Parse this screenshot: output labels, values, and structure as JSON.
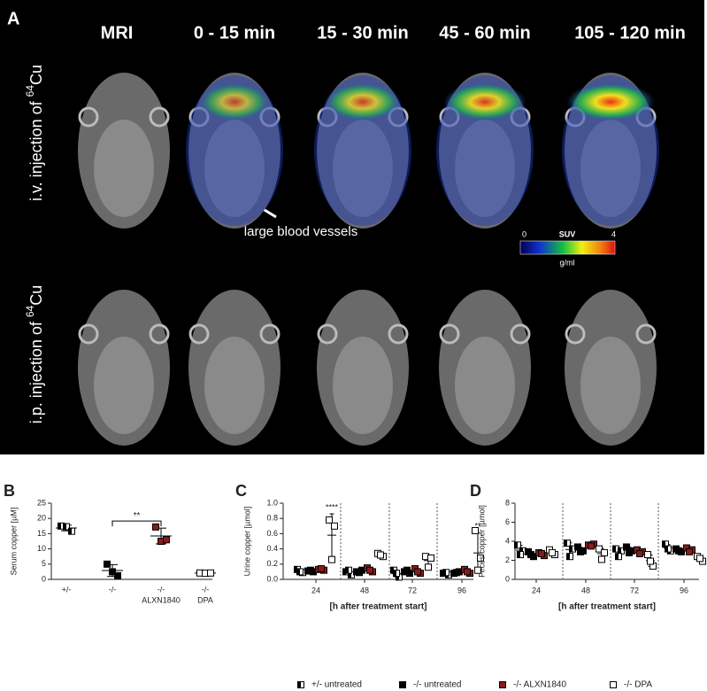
{
  "figure_a": {
    "label": "A",
    "columns": [
      "MRI",
      "0 - 15 min",
      "15 - 30 min",
      "45 - 60 min",
      "105 - 120 min"
    ],
    "rows": [
      {
        "text": "i.v. injection of ",
        "mass": "64",
        "element": "Cu"
      },
      {
        "text": "i.p. injection of ",
        "mass": "64",
        "element": "Cu"
      }
    ],
    "annotation": "large blood vessels",
    "colorbar": {
      "title": "SUV",
      "min": 0,
      "max": 4,
      "unit": "g/ml"
    }
  },
  "chart_data": [
    {
      "type": "scatter",
      "panel": "B",
      "ylabel": "Serum copper [µM]",
      "ylim": [
        0,
        25
      ],
      "yticks": [
        0,
        5,
        10,
        15,
        20,
        25
      ],
      "categories": [
        [
          "+/-"
        ],
        [
          "-/-"
        ],
        [
          "-/-",
          "ALXN1840"
        ],
        [
          "-/-",
          "DPA"
        ]
      ],
      "series": [
        {
          "name": "+/- untreated",
          "color": "#000000",
          "marker": "half",
          "values": [
            [
              17.5,
              17.3,
              15.8
            ],
            null,
            null,
            null
          ]
        },
        {
          "name": "-/- untreated",
          "color": "#000000",
          "marker": "square",
          "values": [
            null,
            [
              5,
              2.5,
              1.2
            ],
            null,
            null
          ]
        },
        {
          "name": "-/- ALXN1840",
          "color": "#8b1a1a",
          "marker": "square",
          "values": [
            null,
            null,
            [
              17.2,
              12.5,
              13.0
            ],
            null
          ]
        },
        {
          "name": "-/- DPA",
          "color": "#ffffff",
          "marker": "square",
          "values": [
            null,
            null,
            null,
            [
              2.1,
              2.0,
              2.1
            ]
          ]
        }
      ],
      "significance": [
        {
          "label": "**",
          "pair": [
            1,
            2
          ]
        }
      ]
    },
    {
      "type": "scatter",
      "panel": "C",
      "ylabel": "Urine copper [µmol]",
      "xlabel": "[h after treatment start]",
      "ylim": [
        0,
        1
      ],
      "yticks": [
        {
          "value": 0,
          "label": "0.0"
        },
        0.2,
        0.4,
        0.6,
        0.8,
        {
          "value": 1,
          "label": "1.0"
        }
      ],
      "categories": [
        24,
        48,
        72,
        96
      ],
      "series": [
        {
          "color": "#000000",
          "marker": "half",
          "values": [
            [
              0.13,
              0.09,
              0.1
            ],
            [
              0.1,
              0.06,
              0.12
            ],
            [
              0.12,
              0.03,
              0.08
            ],
            [
              0.08,
              0.06,
              0.09
            ]
          ]
        },
        {
          "color": "#000000",
          "marker": "square",
          "values": [
            [
              0.11,
              0.1,
              0.12
            ],
            [
              0.1,
              0.12,
              0.09
            ],
            [
              0.1,
              0.08,
              0.12
            ],
            [
              0.08,
              0.1,
              0.09
            ]
          ]
        },
        {
          "color": "#8b1a1a",
          "marker": "square",
          "values": [
            [
              0.13,
              0.12,
              0.14
            ],
            [
              0.15,
              0.1,
              0.12
            ],
            [
              0.14,
              0.08,
              0.1
            ],
            [
              0.13,
              0.08,
              0.1
            ]
          ]
        },
        {
          "color": "#ffffff",
          "marker": "square",
          "values": [
            [
              0.78,
              0.7,
              0.26
            ],
            [
              0.34,
              0.3,
              0.32
            ],
            [
              0.3,
              0.28,
              0.16
            ],
            [
              0.64,
              0.28,
              0.12
            ]
          ]
        }
      ],
      "stars": [
        {
          "label": "****",
          "category": 0,
          "series": 3
        },
        {
          "label": "**",
          "category": 3,
          "series": 3
        }
      ]
    },
    {
      "type": "scatter",
      "panel": "D",
      "ylabel": "Feces copper [µmol]",
      "xlabel": "[h after treatment start]",
      "ylim": [
        0,
        8
      ],
      "yticks": [
        0,
        2,
        4,
        6,
        8
      ],
      "categories": [
        24,
        48,
        72,
        96
      ],
      "series": [
        {
          "color": "#000000",
          "marker": "half",
          "values": [
            [
              3.6,
              3.0,
              2.6
            ],
            [
              3.8,
              3.2,
              2.4
            ],
            [
              3.2,
              3.0,
              2.4
            ],
            [
              3.7,
              3.0,
              3.2
            ]
          ]
        },
        {
          "color": "#000000",
          "marker": "square",
          "values": [
            [
              2.9,
              2.4,
              2.6
            ],
            [
              3.4,
              3.0,
              2.9
            ],
            [
              3.4,
              3.0,
              2.8
            ],
            [
              3.2,
              2.9,
              3.0
            ]
          ]
        },
        {
          "color": "#8b1a1a",
          "marker": "square",
          "values": [
            [
              2.8,
              2.5,
              2.7
            ],
            [
              3.6,
              3.7,
              3.5
            ],
            [
              3.1,
              2.9,
              2.7
            ],
            [
              3.3,
              3.1,
              2.9
            ]
          ]
        },
        {
          "color": "#ffffff",
          "marker": "square",
          "values": [
            [
              3.1,
              2.6,
              2.8
            ],
            [
              3.2,
              2.8,
              2.1
            ],
            [
              2.6,
              1.4,
              1.9
            ],
            [
              2.4,
              1.9,
              2.2
            ]
          ]
        }
      ]
    }
  ]
}
